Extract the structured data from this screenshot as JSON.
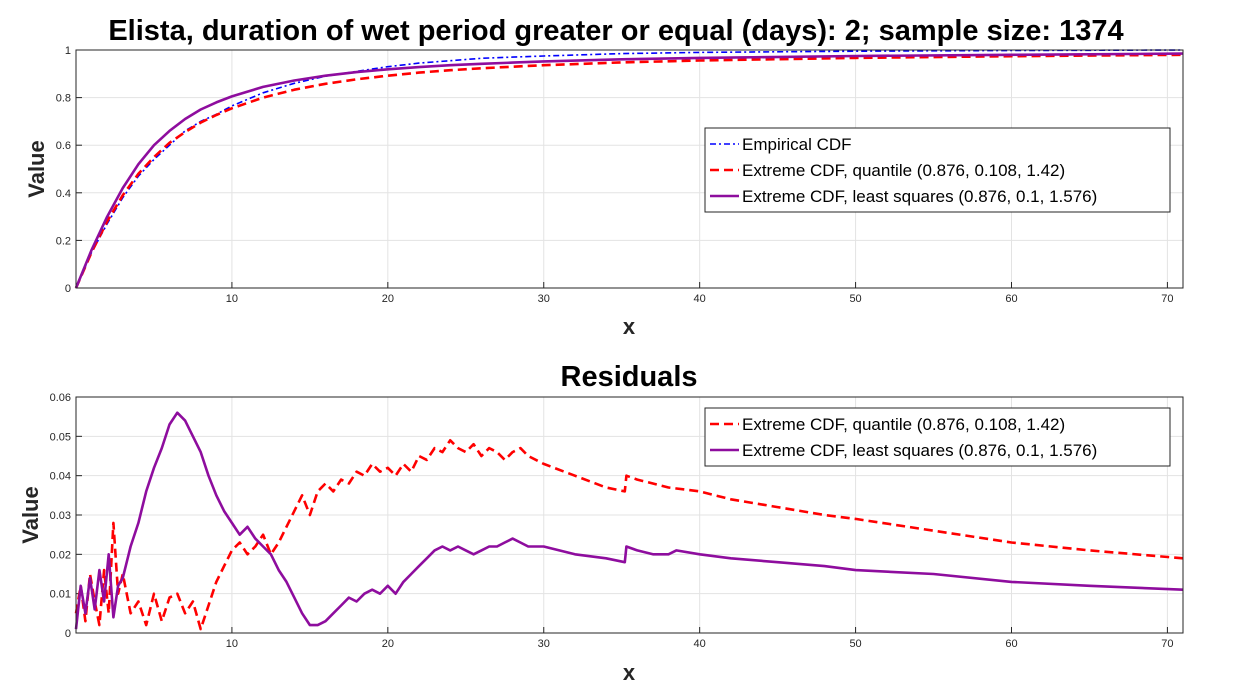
{
  "colors": {
    "empirical": "#0000ff",
    "quantile": "#ff0000",
    "least_squares": "#8e0d9e"
  },
  "chart_data": [
    {
      "type": "line",
      "title": "Elista, duration of wet period greater or equal (days): 2; sample size: 1374",
      "xlabel": "x",
      "ylabel": "Value",
      "xlim": [
        0,
        71
      ],
      "ylim": [
        0,
        1
      ],
      "xticks": [
        10,
        20,
        30,
        40,
        50,
        60,
        70
      ],
      "yticks": [
        0,
        0.2,
        0.4,
        0.6,
        0.8,
        1
      ],
      "grid": true,
      "legend_position": "right",
      "series": [
        {
          "name": "Empirical CDF",
          "style": "dash-dot",
          "x": [
            0,
            1,
            2,
            3,
            4,
            5,
            6,
            7,
            8,
            9,
            10,
            12,
            14,
            16,
            18,
            20,
            22,
            24,
            26,
            28,
            30,
            35,
            40,
            50,
            60,
            71
          ],
          "y": [
            0,
            0.15,
            0.27,
            0.38,
            0.47,
            0.54,
            0.6,
            0.66,
            0.7,
            0.73,
            0.765,
            0.82,
            0.86,
            0.89,
            0.91,
            0.93,
            0.945,
            0.955,
            0.965,
            0.97,
            0.975,
            0.985,
            0.99,
            0.995,
            0.998,
            1.0
          ]
        },
        {
          "name": "Extreme CDF, quantile (0.876, 0.108, 1.42)",
          "style": "dashed",
          "x": [
            0,
            1,
            2,
            3,
            4,
            5,
            6,
            7,
            8,
            9,
            10,
            12,
            14,
            16,
            18,
            20,
            22,
            24,
            26,
            28,
            30,
            35,
            40,
            50,
            60,
            71
          ],
          "y": [
            0,
            0.15,
            0.28,
            0.39,
            0.48,
            0.55,
            0.61,
            0.655,
            0.695,
            0.727,
            0.755,
            0.8,
            0.833,
            0.858,
            0.877,
            0.892,
            0.905,
            0.915,
            0.923,
            0.93,
            0.936,
            0.948,
            0.956,
            0.967,
            0.974,
            0.98
          ]
        },
        {
          "name": "Extreme CDF, least squares (0.876, 0.1, 1.576)",
          "style": "solid",
          "x": [
            0,
            1,
            2,
            3,
            4,
            5,
            6,
            7,
            8,
            9,
            10,
            12,
            14,
            16,
            18,
            20,
            22,
            24,
            26,
            28,
            30,
            35,
            40,
            50,
            60,
            71
          ],
          "y": [
            0,
            0.16,
            0.3,
            0.42,
            0.52,
            0.6,
            0.66,
            0.71,
            0.75,
            0.78,
            0.805,
            0.845,
            0.872,
            0.892,
            0.907,
            0.919,
            0.928,
            0.936,
            0.942,
            0.947,
            0.952,
            0.961,
            0.967,
            0.975,
            0.98,
            0.985
          ]
        }
      ]
    },
    {
      "type": "line",
      "title": "Residuals",
      "xlabel": "x",
      "ylabel": "Value",
      "xlim": [
        0,
        71
      ],
      "ylim": [
        0,
        0.06
      ],
      "xticks": [
        10,
        20,
        30,
        40,
        50,
        60,
        70
      ],
      "yticks": [
        0,
        0.01,
        0.02,
        0.03,
        0.04,
        0.05,
        0.06
      ],
      "grid": true,
      "legend_position": "top-right",
      "series": [
        {
          "name": "Extreme CDF, quantile (0.876, 0.108, 1.42)",
          "style": "dashed",
          "x": [
            0,
            0.3,
            0.6,
            0.9,
            1.2,
            1.5,
            1.8,
            2.1,
            2.4,
            2.7,
            3.0,
            3.5,
            4.0,
            4.5,
            5.0,
            5.5,
            6.0,
            6.5,
            7.0,
            7.5,
            8.0,
            8.5,
            9.0,
            9.5,
            10.0,
            10.5,
            11.0,
            11.5,
            12.0,
            12.5,
            13.0,
            13.5,
            14.0,
            14.5,
            15.0,
            15.5,
            16.0,
            16.5,
            17.0,
            17.5,
            18.0,
            18.5,
            19.0,
            19.5,
            20.0,
            20.5,
            21.0,
            21.5,
            22.0,
            22.5,
            23.0,
            23.5,
            24.0,
            24.5,
            25.0,
            25.5,
            26.0,
            26.5,
            27.0,
            27.5,
            28.0,
            28.5,
            29.0,
            30,
            32,
            34,
            35.2,
            35.3,
            36,
            37,
            38,
            40,
            42,
            45,
            48,
            50,
            55,
            60,
            65,
            71
          ],
          "y": [
            0.005,
            0.012,
            0.003,
            0.015,
            0.008,
            0.002,
            0.016,
            0.005,
            0.028,
            0.01,
            0.015,
            0.005,
            0.008,
            0.002,
            0.01,
            0.003,
            0.009,
            0.01,
            0.005,
            0.008,
            0.001,
            0.007,
            0.013,
            0.017,
            0.021,
            0.023,
            0.02,
            0.022,
            0.025,
            0.02,
            0.023,
            0.027,
            0.031,
            0.035,
            0.03,
            0.036,
            0.038,
            0.036,
            0.039,
            0.038,
            0.041,
            0.04,
            0.043,
            0.041,
            0.042,
            0.04,
            0.043,
            0.041,
            0.045,
            0.044,
            0.047,
            0.046,
            0.049,
            0.047,
            0.046,
            0.048,
            0.045,
            0.047,
            0.046,
            0.044,
            0.046,
            0.047,
            0.045,
            0.043,
            0.04,
            0.037,
            0.036,
            0.04,
            0.039,
            0.038,
            0.037,
            0.036,
            0.034,
            0.032,
            0.03,
            0.029,
            0.026,
            0.023,
            0.021,
            0.019
          ]
        },
        {
          "name": "Extreme CDF, least squares (0.876, 0.1, 1.576)",
          "style": "solid",
          "x": [
            0,
            0.3,
            0.6,
            0.9,
            1.2,
            1.5,
            1.8,
            2.1,
            2.4,
            2.7,
            3.0,
            3.5,
            4.0,
            4.5,
            5.0,
            5.5,
            6.0,
            6.5,
            7.0,
            7.5,
            8.0,
            8.5,
            9.0,
            9.5,
            10.0,
            10.5,
            11.0,
            11.5,
            12.0,
            12.5,
            13.0,
            13.5,
            14.0,
            14.5,
            15.0,
            15.5,
            16.0,
            16.5,
            17.0,
            17.5,
            18.0,
            18.5,
            19.0,
            19.5,
            20.0,
            20.5,
            21.0,
            21.5,
            22.0,
            22.5,
            23.0,
            23.5,
            24.0,
            24.5,
            25.0,
            25.5,
            26.0,
            26.5,
            27.0,
            27.5,
            28.0,
            28.5,
            29.0,
            30,
            32,
            34,
            35.2,
            35.3,
            36,
            37,
            38,
            38.5,
            40,
            42,
            45,
            48,
            50,
            55,
            60,
            65,
            71
          ],
          "y": [
            0.001,
            0.012,
            0.005,
            0.014,
            0.006,
            0.016,
            0.008,
            0.02,
            0.004,
            0.012,
            0.014,
            0.022,
            0.028,
            0.036,
            0.042,
            0.047,
            0.053,
            0.056,
            0.054,
            0.05,
            0.046,
            0.04,
            0.035,
            0.031,
            0.028,
            0.025,
            0.027,
            0.024,
            0.022,
            0.02,
            0.016,
            0.013,
            0.009,
            0.005,
            0.002,
            0.002,
            0.003,
            0.005,
            0.007,
            0.009,
            0.008,
            0.01,
            0.011,
            0.01,
            0.012,
            0.01,
            0.013,
            0.015,
            0.017,
            0.019,
            0.021,
            0.022,
            0.021,
            0.022,
            0.021,
            0.02,
            0.021,
            0.022,
            0.022,
            0.023,
            0.024,
            0.023,
            0.022,
            0.022,
            0.02,
            0.019,
            0.018,
            0.022,
            0.021,
            0.02,
            0.02,
            0.021,
            0.02,
            0.019,
            0.018,
            0.017,
            0.016,
            0.015,
            0.013,
            0.012,
            0.011
          ]
        }
      ]
    }
  ]
}
